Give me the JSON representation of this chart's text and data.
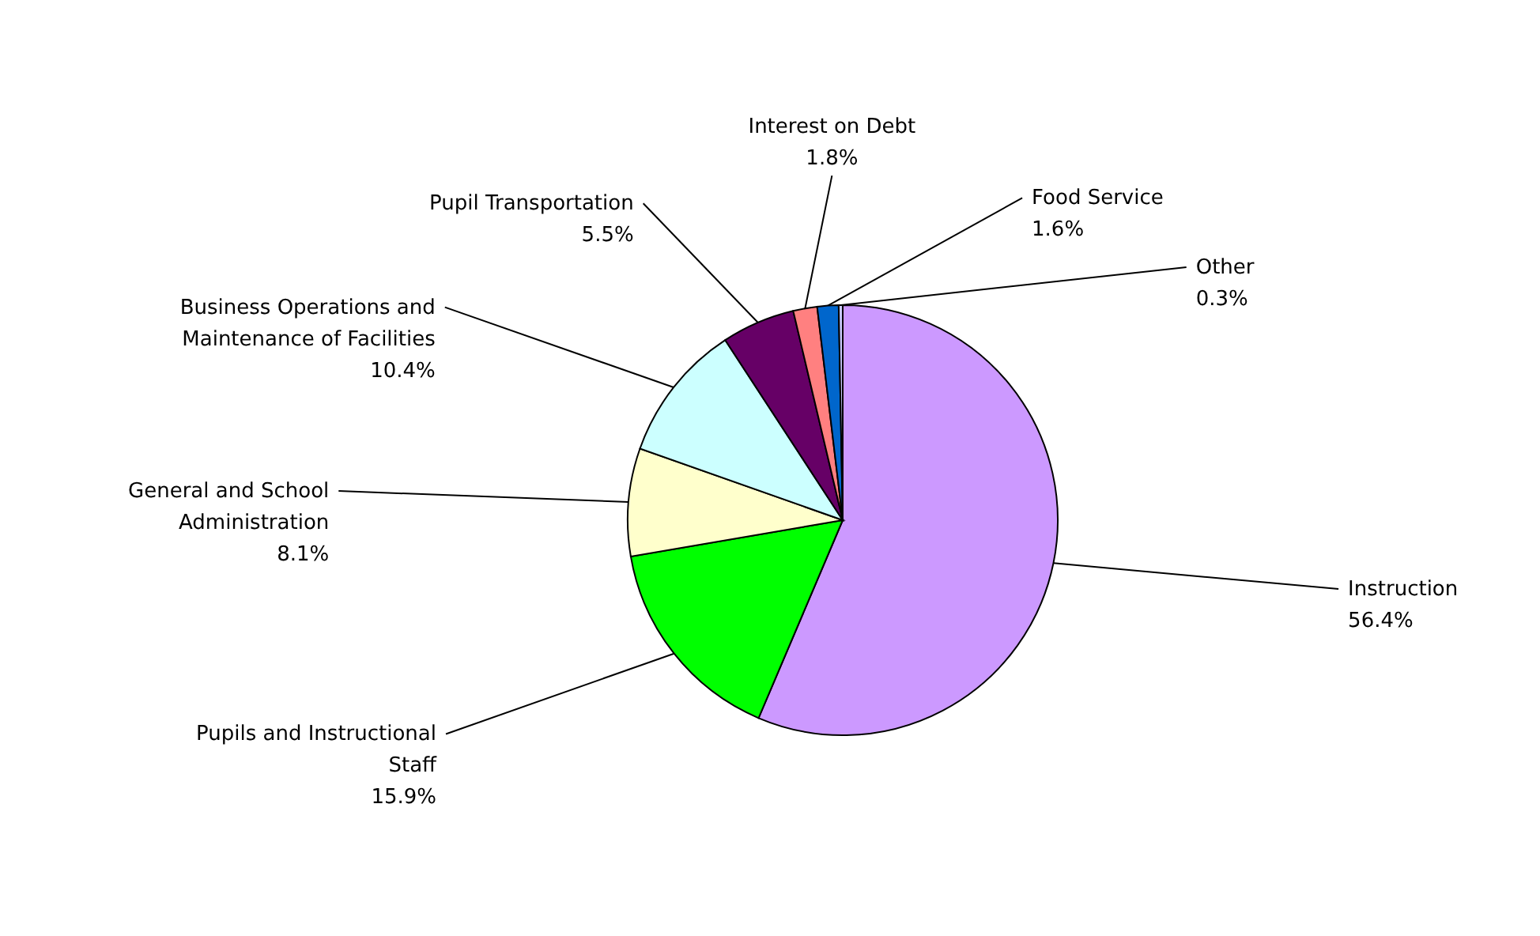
{
  "chart_data": {
    "type": "pie",
    "categories": [
      "Instruction",
      "Pupils and Instructional Staff",
      "General and School Administration",
      "Business Operations and Maintenance of Facilities",
      "Pupil Transportation",
      "Interest on Debt",
      "Food Service",
      "Other"
    ],
    "values": [
      56.4,
      15.9,
      8.1,
      10.4,
      5.5,
      1.8,
      1.6,
      0.3
    ],
    "value_labels": [
      "56.4%",
      "15.9%",
      "8.1%",
      "10.4%",
      "5.5%",
      "1.8%",
      "1.6%",
      "0.3%"
    ],
    "colors": [
      "#cc99ff",
      "#00ff00",
      "#ffffcc",
      "#ccffff",
      "#660066",
      "#ff8080",
      "#0066cc",
      "#ccccff"
    ]
  }
}
